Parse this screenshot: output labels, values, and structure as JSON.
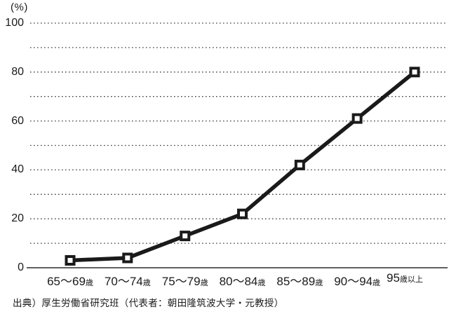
{
  "chart_data": {
    "type": "line",
    "title": "",
    "unit_label": "(%)",
    "categories": [
      {
        "main": "65〜69",
        "suffix": "歳"
      },
      {
        "main": "70〜74",
        "suffix": "歳"
      },
      {
        "main": "75〜79",
        "suffix": "歳"
      },
      {
        "main": "80〜84",
        "suffix": "歳"
      },
      {
        "main": "85〜89",
        "suffix": "歳"
      },
      {
        "main": "90〜94",
        "suffix": "歳"
      },
      {
        "main": "95",
        "suffix": "歳以上"
      }
    ],
    "values": [
      3,
      4,
      13,
      22,
      42,
      61,
      80
    ],
    "ylim": [
      0,
      100
    ],
    "yticks": [
      0,
      20,
      40,
      60,
      80,
      100
    ],
    "grid_step": 10,
    "grid_style": "dotted-horizontal",
    "line_color": "#1a1a1a",
    "marker": "square-white-fill",
    "marker_color": "#1a1a1a",
    "background": "#ffffff",
    "legend": "none"
  },
  "caption": {
    "source": "出典）厚生労働省研究班（代表者：朝田隆筑波大学・元教授）"
  }
}
